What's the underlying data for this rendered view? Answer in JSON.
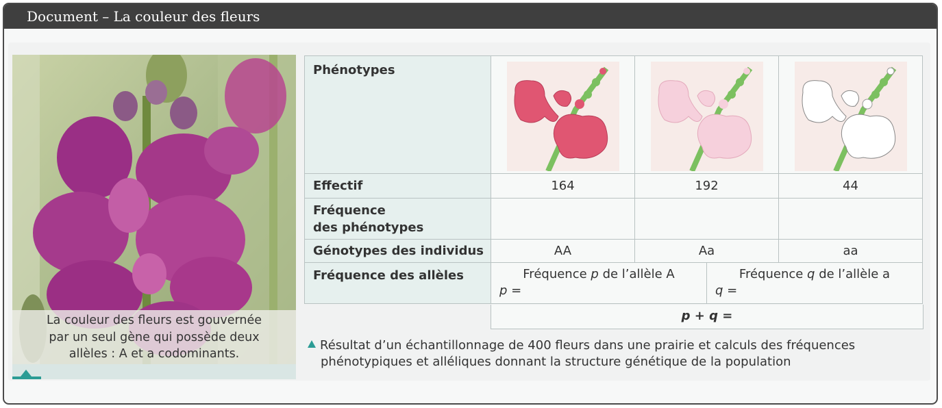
{
  "header": {
    "title": "Document – La couleur des fleurs"
  },
  "photo": {
    "caption_line1": "La couleur des fleurs est gouvernée",
    "caption_line2": "par un seul gène qui possède deux",
    "caption_line3": "allèles : A et a codominants."
  },
  "table": {
    "row_labels": {
      "phenotypes": "Phénotypes",
      "effectif": "Effectif",
      "frequence_line1": "Fréquence",
      "frequence_line2": "des phénotypes",
      "genotypes": "Génotypes des individus",
      "alleles": "Fréquence des allèles"
    },
    "phenotype_colors": [
      "#e05672",
      "#f6d0dc",
      "#ffffff"
    ],
    "effectifs": [
      "164",
      "192",
      "44"
    ],
    "genotypes": [
      "AA",
      "Aa",
      "aa"
    ],
    "allele_A": {
      "label_pre": "Fréquence ",
      "var": "p",
      "label_post": " de l’allèle A",
      "eq": "p ="
    },
    "allele_a": {
      "label_pre": "Fréquence ",
      "var": "q",
      "label_post": " de l’allèle a",
      "eq": "q ="
    },
    "sum": "p + q ="
  },
  "note": {
    "line1": "Résultat d’un échantillonnage de 400 fleurs dans une prairie et calculs des fréquences",
    "line2": "phénotypiques et alléliques donnant la structure génétique de la population"
  },
  "colors": {
    "accent": "#2c9c95",
    "title_bar": "#3f3f3f",
    "header_cell": "#e6f0ee"
  }
}
